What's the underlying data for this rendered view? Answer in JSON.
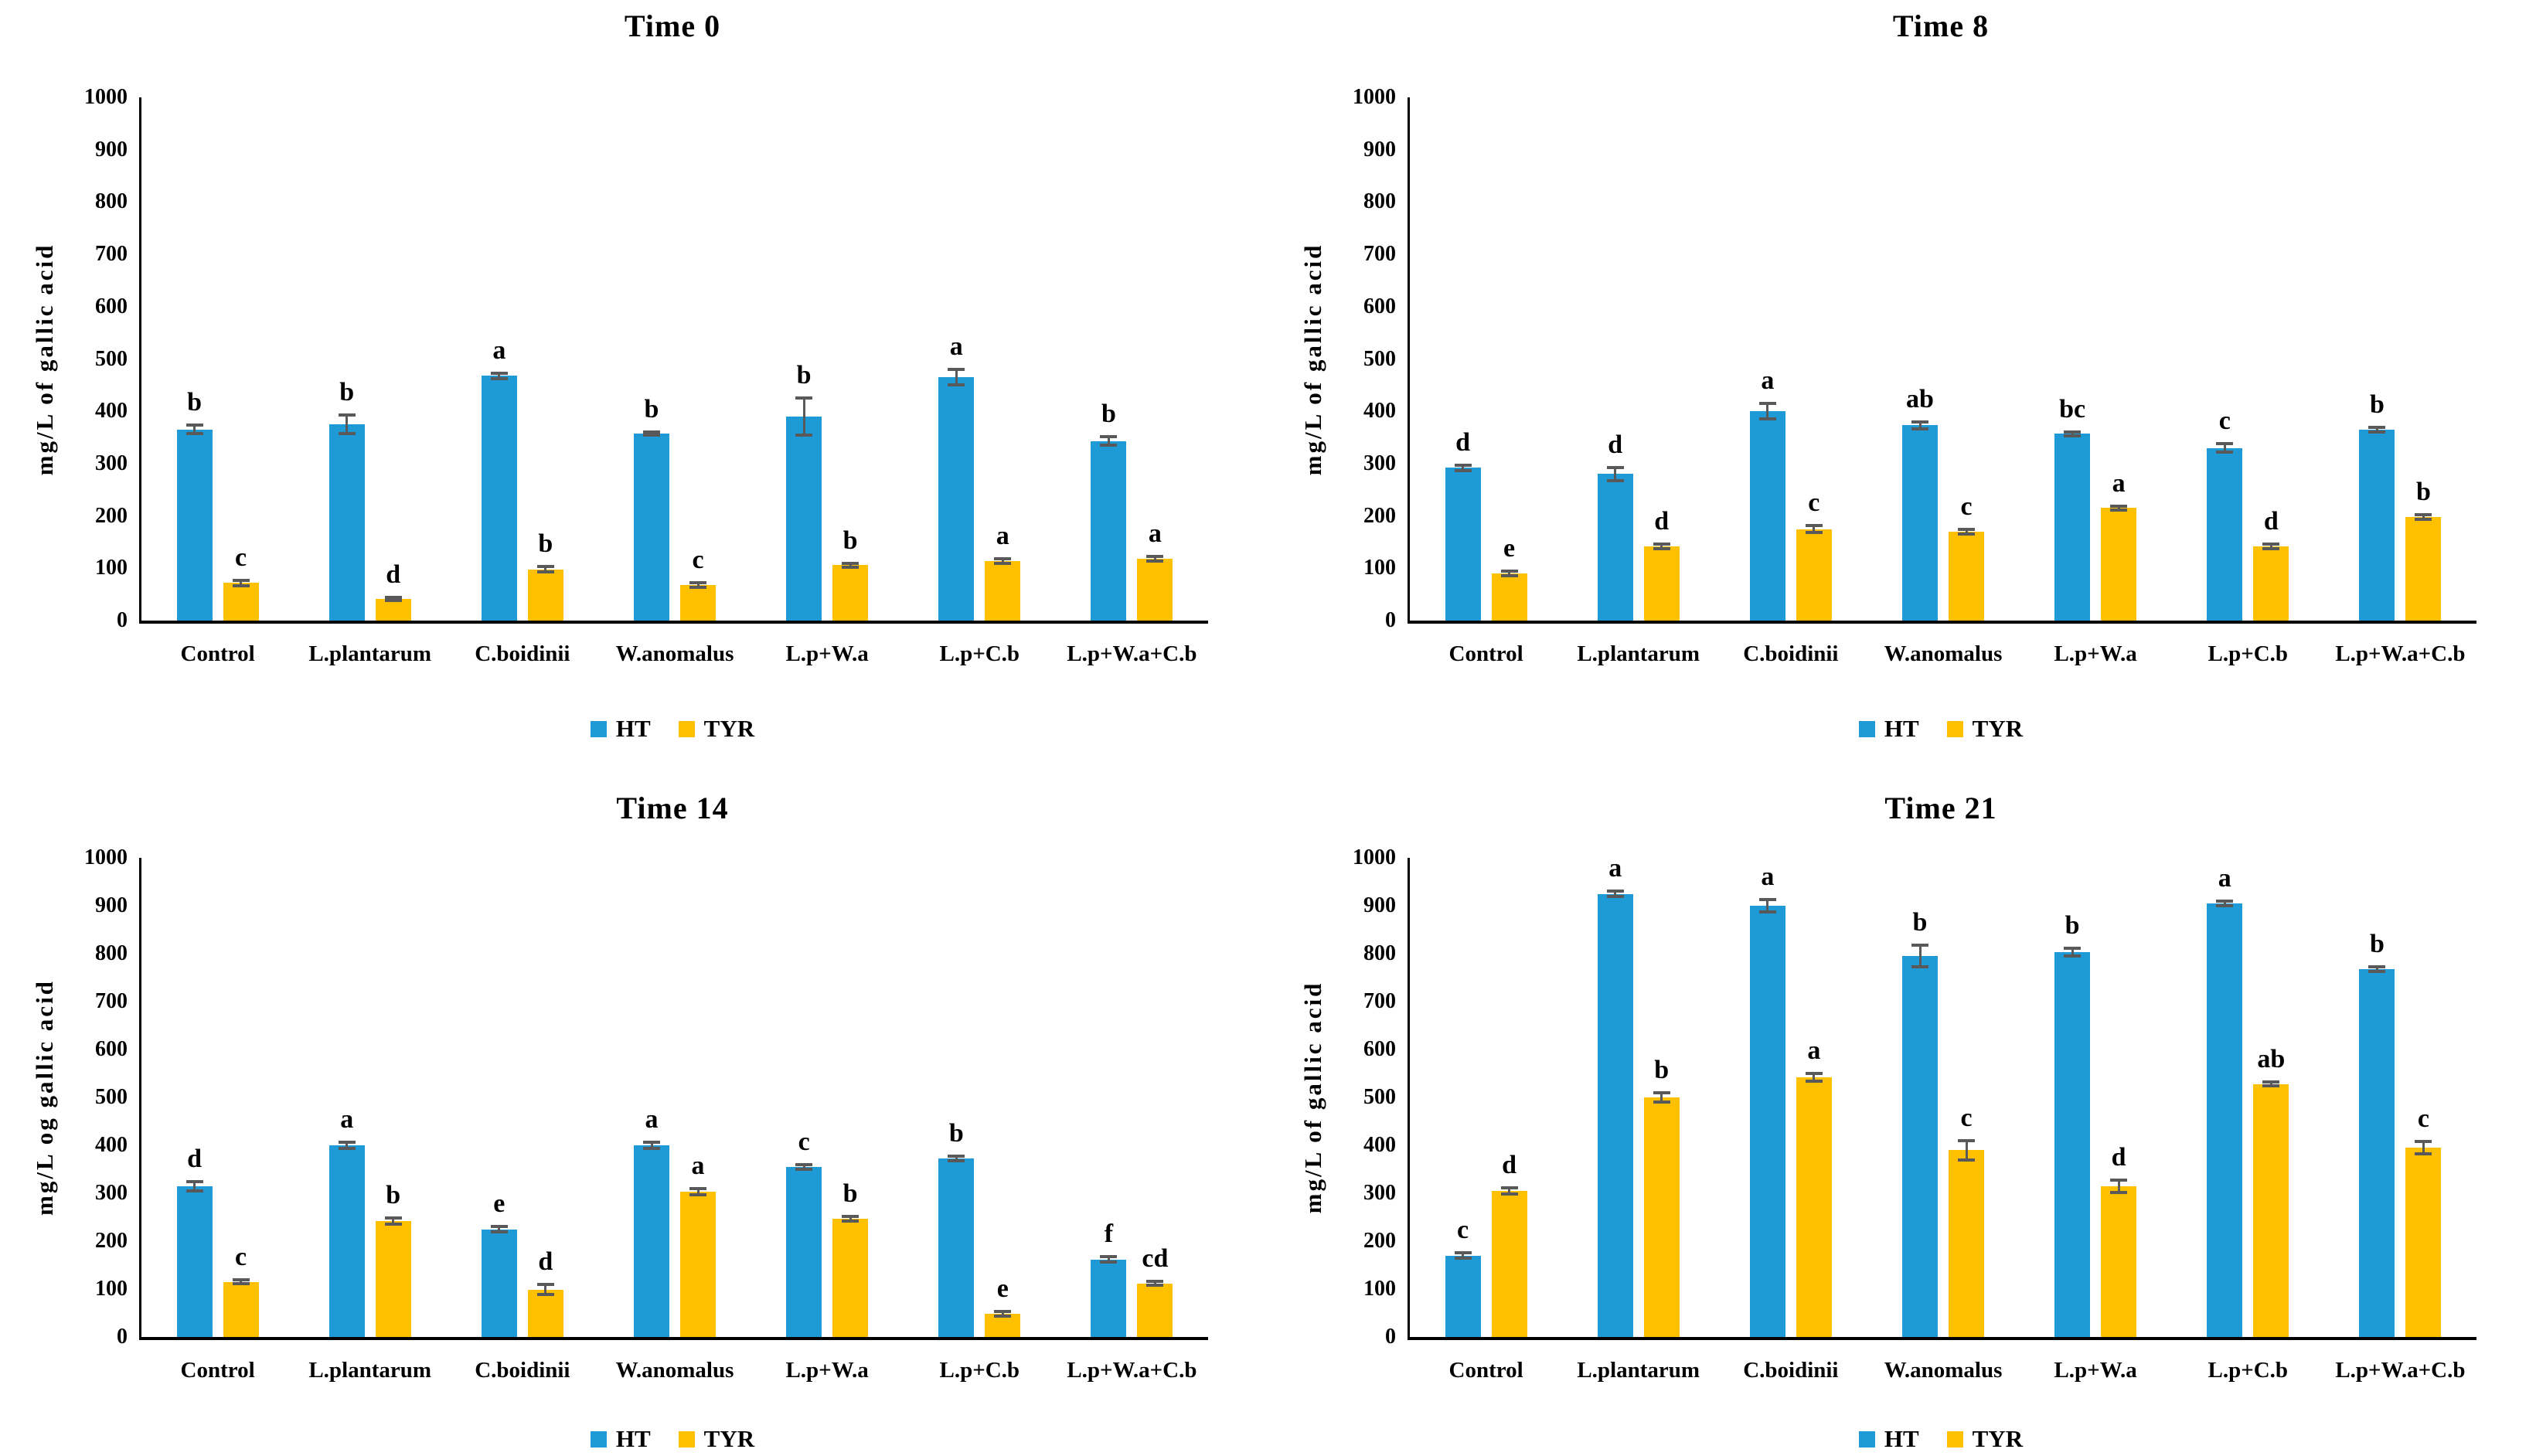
{
  "figure": {
    "background": "#ffffff",
    "axis_color": "#000000",
    "error_bar_color": "#595959",
    "series_colors": {
      "HT": "#1E9BD7",
      "TYR": "#FFC000"
    },
    "legend_labels": [
      "HT",
      "TYR"
    ]
  },
  "chart_data": [
    {
      "type": "bar",
      "title": "Time 0",
      "ylabel": "mg/L of gallic acid",
      "xlabel": "",
      "ylim": [
        0,
        1000
      ],
      "ytick_step": 100,
      "grid": false,
      "legend_position": "bottom",
      "categories": [
        "Control",
        "L.plantarum",
        "C.boidinii",
        "W.anomalus",
        "L.p+W.a",
        "L.p+C.b",
        "L.p+W.a+C.b"
      ],
      "series": [
        {
          "name": "HT",
          "color": "#1E9BD7",
          "values": [
            365,
            375,
            468,
            358,
            390,
            465,
            343
          ],
          "errors": [
            8,
            18,
            5,
            3,
            35,
            15,
            8
          ],
          "letters": [
            "b",
            "b",
            "a",
            "b",
            "b",
            "a",
            "b"
          ]
        },
        {
          "name": "TYR",
          "color": "#FFC000",
          "values": [
            72,
            42,
            98,
            68,
            106,
            114,
            118
          ],
          "errors": [
            5,
            3,
            5,
            4,
            4,
            4,
            5
          ],
          "letters": [
            "c",
            "d",
            "b",
            "c",
            "b",
            "a",
            "a"
          ]
        }
      ]
    },
    {
      "type": "bar",
      "title": "Time 8",
      "ylabel": "mg/L of gallic acid",
      "xlabel": "",
      "ylim": [
        0,
        1000
      ],
      "ytick_step": 100,
      "grid": false,
      "legend_position": "bottom",
      "categories": [
        "Control",
        "L.plantarum",
        "C.boidinii",
        "W.anomalus",
        "L.p+W.a",
        "L.p+C.b",
        "L.p+W.a+C.b"
      ],
      "series": [
        {
          "name": "HT",
          "color": "#1E9BD7",
          "values": [
            292,
            280,
            400,
            373,
            357,
            330,
            365
          ],
          "errors": [
            5,
            12,
            15,
            6,
            4,
            8,
            4
          ],
          "letters": [
            "d",
            "d",
            "a",
            "ab",
            "bc",
            "c",
            "b"
          ]
        },
        {
          "name": "TYR",
          "color": "#FFC000",
          "values": [
            90,
            142,
            175,
            170,
            215,
            142,
            198
          ],
          "errors": [
            4,
            4,
            6,
            4,
            4,
            4,
            4
          ],
          "letters": [
            "e",
            "d",
            "c",
            "c",
            "a",
            "d",
            "b"
          ]
        }
      ]
    },
    {
      "type": "bar",
      "title": "Time 14",
      "ylabel": "mg/L og gallic acid",
      "xlabel": "",
      "ylim": [
        0,
        1000
      ],
      "ytick_step": 100,
      "grid": false,
      "legend_position": "bottom",
      "categories": [
        "Control",
        "L.plantarum",
        "C.boidinii",
        "W.anomalus",
        "L.p+W.a",
        "L.p+C.b",
        "L.p+W.a+C.b"
      ],
      "series": [
        {
          "name": "HT",
          "color": "#1E9BD7",
          "values": [
            315,
            400,
            225,
            400,
            355,
            372,
            162
          ],
          "errors": [
            10,
            6,
            6,
            6,
            5,
            5,
            5
          ],
          "letters": [
            "d",
            "a",
            "e",
            "a",
            "c",
            "b",
            "f"
          ]
        },
        {
          "name": "TYR",
          "color": "#FFC000",
          "values": [
            115,
            242,
            99,
            303,
            247,
            48,
            112
          ],
          "errors": [
            4,
            6,
            10,
            6,
            5,
            5,
            4
          ],
          "letters": [
            "c",
            "b",
            "d",
            "a",
            "b",
            "e",
            "cd"
          ]
        }
      ]
    },
    {
      "type": "bar",
      "title": "Time 21",
      "ylabel": "mg/L of gallic acid",
      "xlabel": "",
      "ylim": [
        0,
        1000
      ],
      "ytick_step": 100,
      "grid": false,
      "legend_position": "bottom",
      "categories": [
        "Control",
        "L.plantarum",
        "C.boidinii",
        "W.anomalus",
        "L.p+W.a",
        "L.p+C.b",
        "L.p+W.a+C.b"
      ],
      "series": [
        {
          "name": "HT",
          "color": "#1E9BD7",
          "values": [
            170,
            925,
            900,
            795,
            803,
            905,
            768
          ],
          "errors": [
            6,
            6,
            13,
            22,
            8,
            5,
            5
          ],
          "letters": [
            "c",
            "a",
            "a",
            "b",
            "b",
            "a",
            "b"
          ]
        },
        {
          "name": "TYR",
          "color": "#FFC000",
          "values": [
            305,
            500,
            542,
            390,
            315,
            528,
            395
          ],
          "errors": [
            6,
            10,
            8,
            20,
            13,
            4,
            13
          ],
          "letters": [
            "d",
            "b",
            "a",
            "c",
            "d",
            "ab",
            "c"
          ]
        }
      ]
    }
  ]
}
